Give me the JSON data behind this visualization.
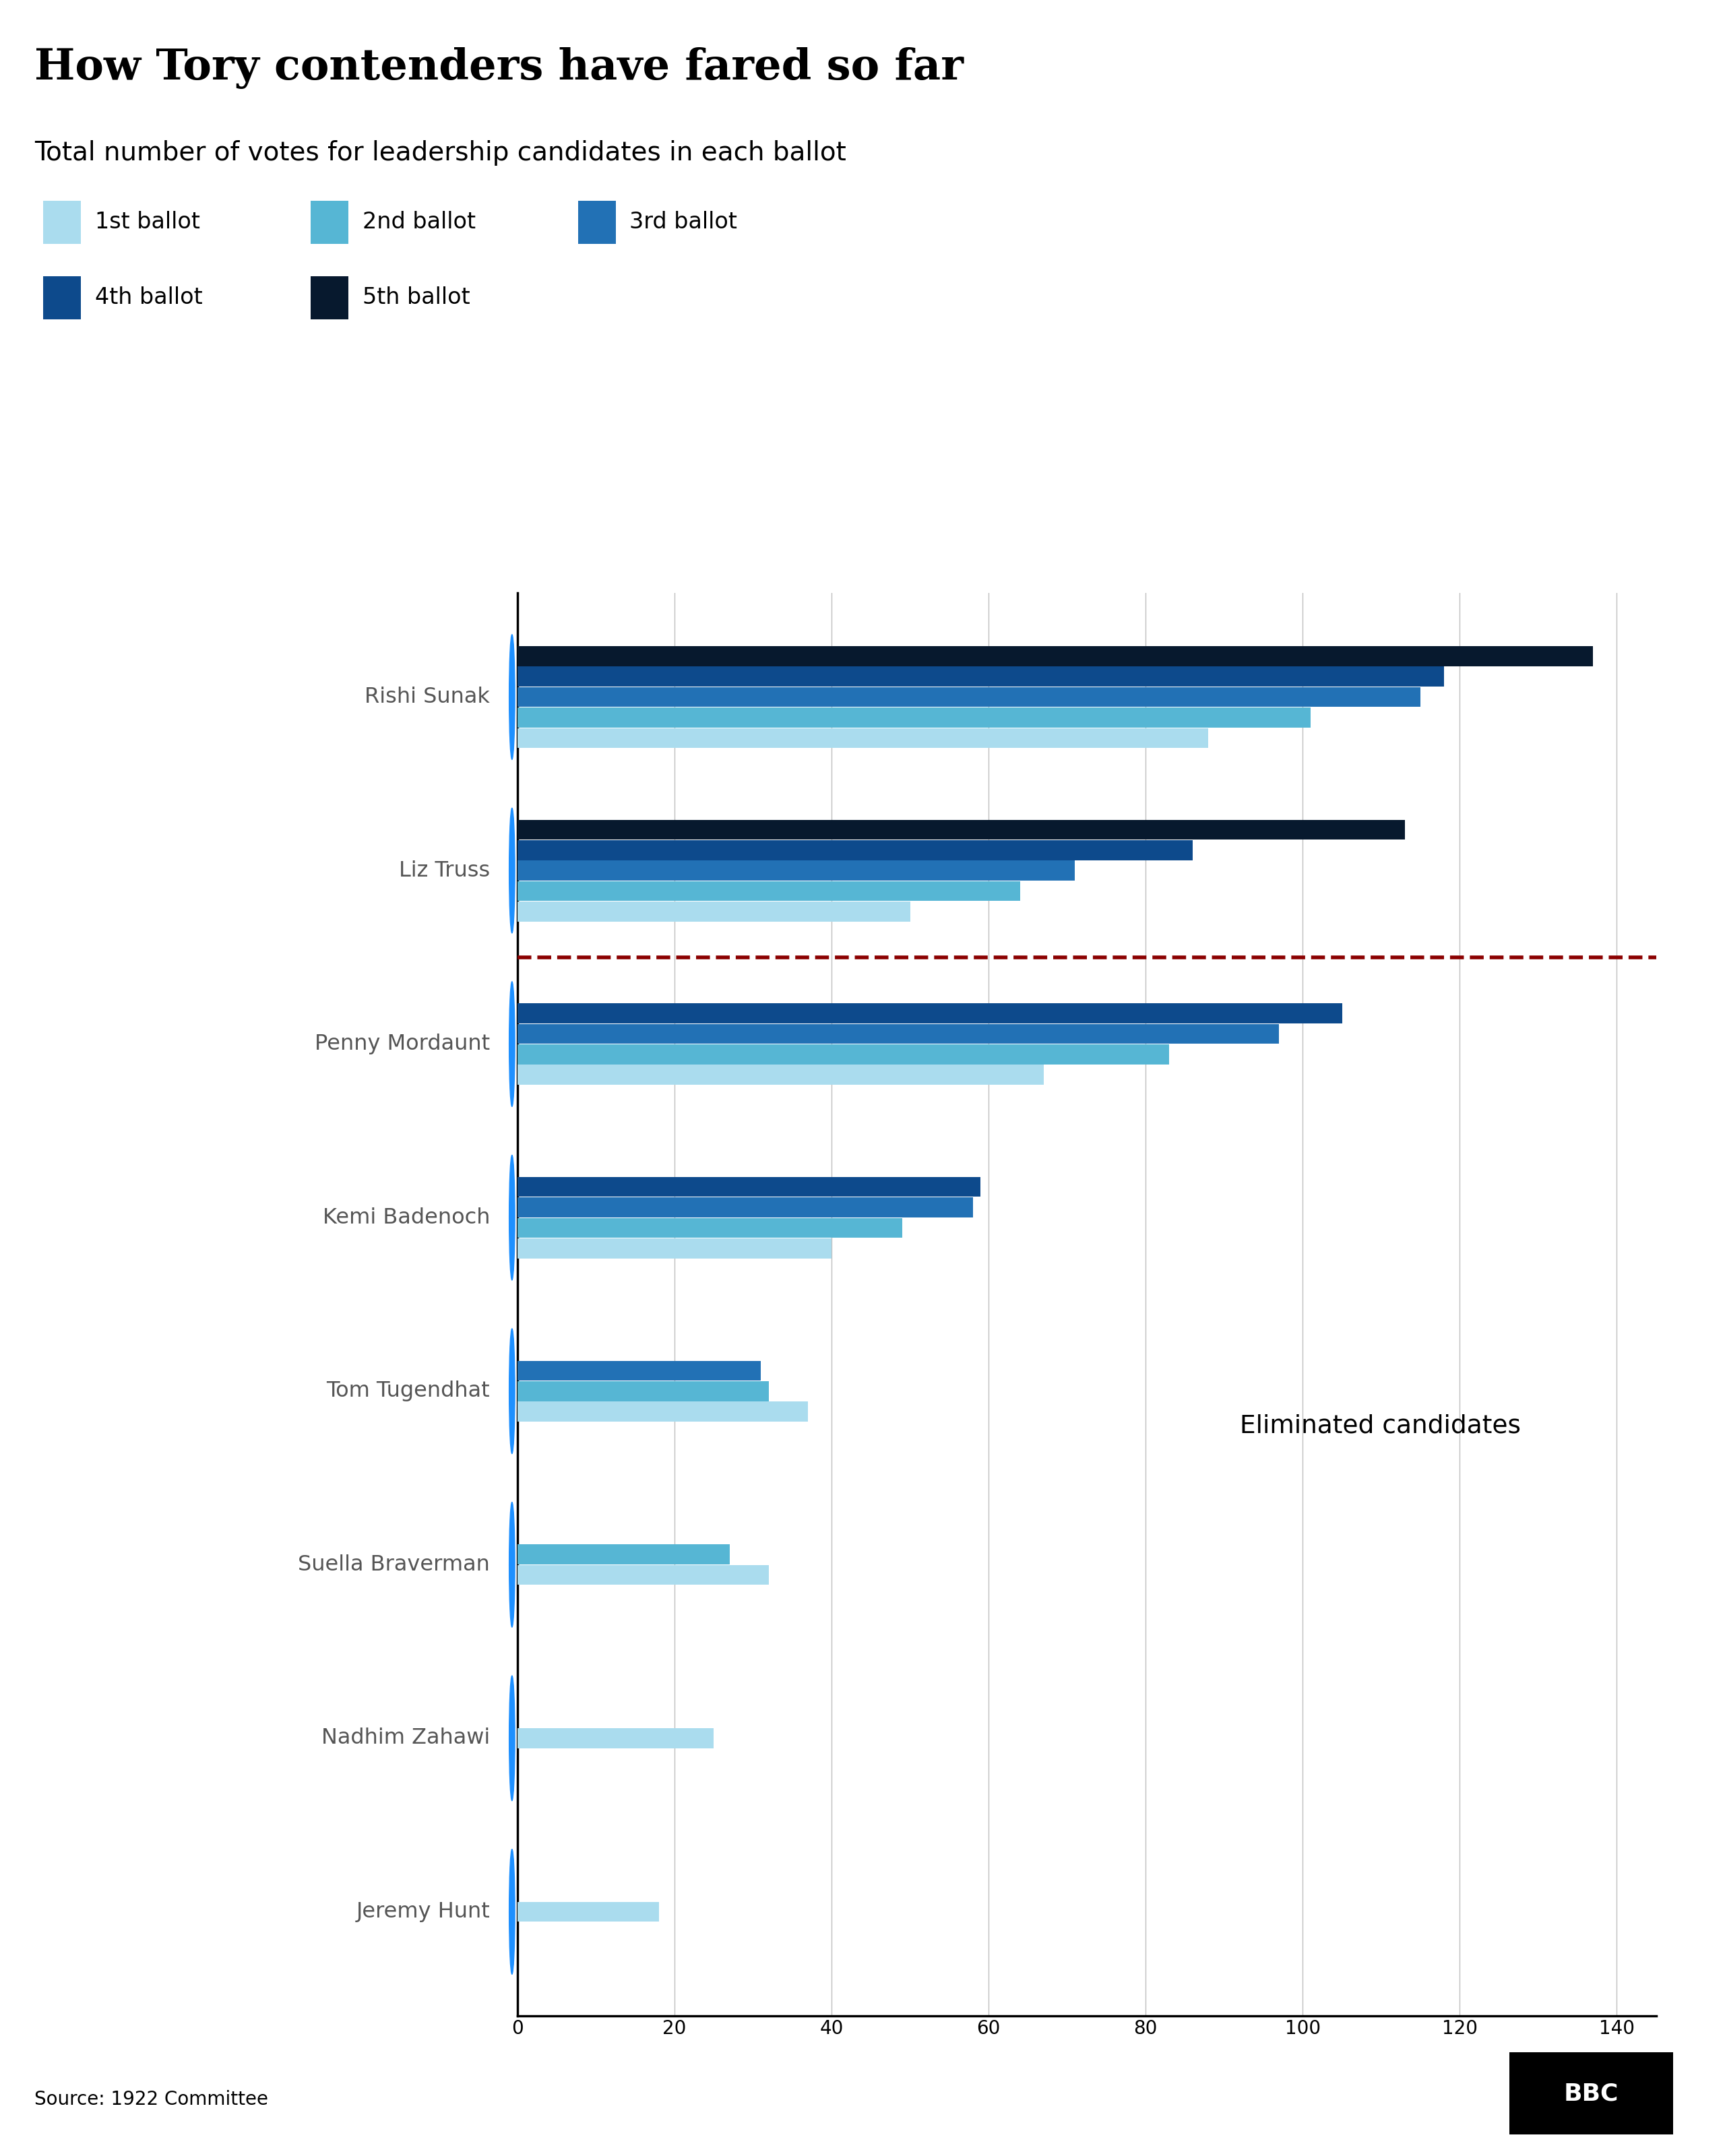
{
  "title": "How Tory contenders have fared so far",
  "subtitle": "Total number of votes for leadership candidates in each ballot",
  "source": "Source: 1922 Committee",
  "candidates": [
    "Rishi Sunak",
    "Liz Truss",
    "Penny Mordaunt",
    "Kemi Badenoch",
    "Tom Tugendhat",
    "Suella Braverman",
    "Nadhim Zahawi",
    "Jeremy Hunt"
  ],
  "ballots": [
    [
      88,
      101,
      115,
      118,
      137
    ],
    [
      50,
      64,
      71,
      86,
      113
    ],
    [
      67,
      83,
      97,
      105,
      null
    ],
    [
      40,
      49,
      58,
      59,
      null
    ],
    [
      37,
      32,
      31,
      null,
      null
    ],
    [
      32,
      27,
      null,
      null,
      null
    ],
    [
      25,
      null,
      null,
      null,
      null
    ],
    [
      18,
      null,
      null,
      null,
      null
    ]
  ],
  "ballot_colors": [
    "#aadcee",
    "#56b6d4",
    "#2271b5",
    "#0d4a8c",
    "#07192e"
  ],
  "ballot_labels": [
    "1st ballot",
    "2nd ballot",
    "3rd ballot",
    "4th ballot",
    "5th ballot"
  ],
  "xlim_max": 145,
  "xticks": [
    0,
    20,
    40,
    60,
    80,
    100,
    120,
    140
  ],
  "background_color": "#ffffff",
  "dashed_line_color": "#8B0000",
  "eliminated_text": "Eliminated candidates",
  "title_color": "#000000",
  "subtitle_color": "#000000",
  "label_color": "#555555"
}
